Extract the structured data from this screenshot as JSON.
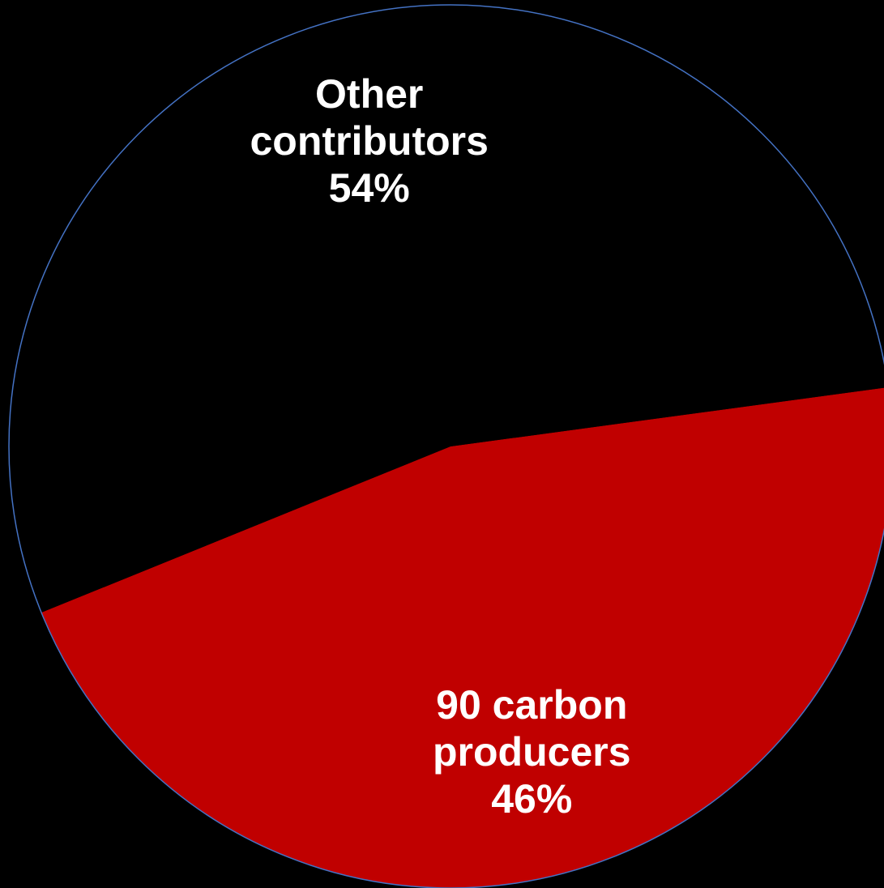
{
  "chart_data": {
    "type": "pie",
    "title": "",
    "slices": [
      {
        "name": "90 carbon producers",
        "value": 46,
        "label_lines": [
          "90 carbon",
          "producers",
          "46%"
        ],
        "color": "#C00000"
      },
      {
        "name": "Other contributors",
        "value": 54,
        "label_lines": [
          "Other",
          "contributors",
          "54%"
        ],
        "color": "#000000"
      }
    ],
    "outline_color": "#4472C4",
    "background": "#000000",
    "legend": "none"
  }
}
